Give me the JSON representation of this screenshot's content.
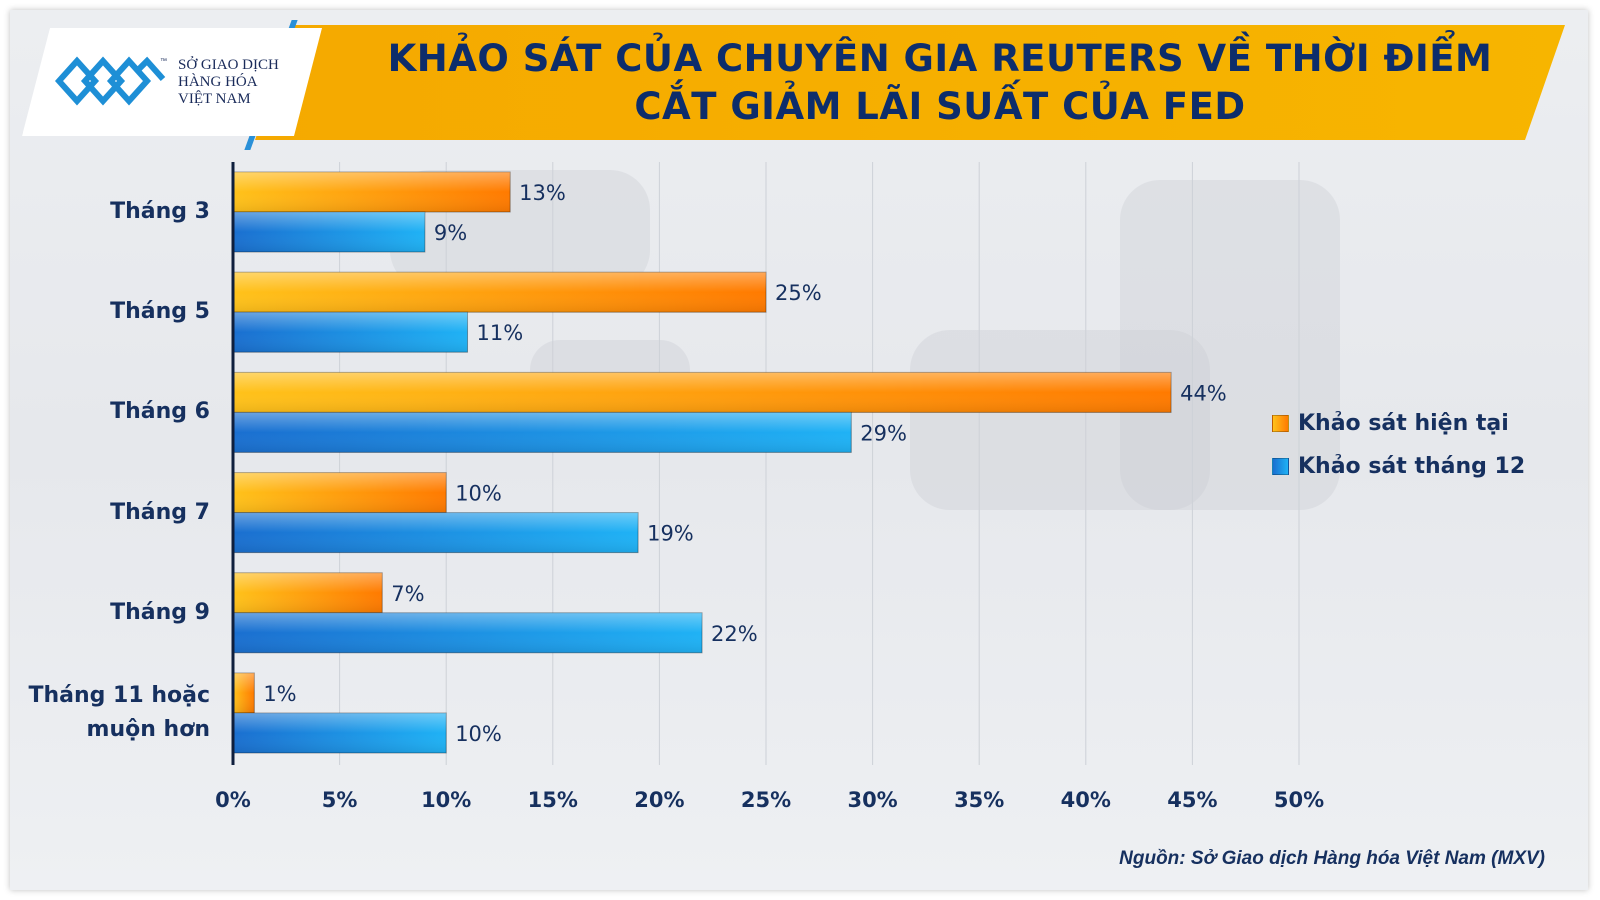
{
  "title": {
    "line1": "KHẢO SÁT CỦA CHUYÊN GIA REUTERS VỀ THỜI ĐIỂM",
    "line2": "CẮT GIẢM LÃI SUẤT CỦA FED"
  },
  "logo": {
    "line1": "SỞ GIAO DỊCH",
    "line2": "HÀNG HÓA",
    "line3": "VIỆT NAM",
    "tm": "™"
  },
  "source": "Nguồn: Sở Giao dịch Hàng hóa Việt Nam (MXV)",
  "colors": {
    "banner": "#f5a900",
    "title_text": "#0d2d6b",
    "orange_light": "#ffc21a",
    "orange_dark": "#ff7a00",
    "blue_dark": "#1a6fd0",
    "blue_light": "#1fb2f5",
    "label_text": "#16305f"
  },
  "chart_data": {
    "type": "bar",
    "orientation": "horizontal",
    "categories": [
      [
        "Tháng 3"
      ],
      [
        "Tháng 5"
      ],
      [
        "Tháng 6"
      ],
      [
        "Tháng 7"
      ],
      [
        "Tháng 9"
      ],
      [
        "Tháng 11 hoặc",
        "muộn hơn"
      ]
    ],
    "series": [
      {
        "name": "Khảo sát hiện tại",
        "values": [
          13,
          25,
          44,
          10,
          7,
          1
        ],
        "color": "orange"
      },
      {
        "name": "Khảo sát tháng 12",
        "values": [
          9,
          11,
          29,
          19,
          22,
          10
        ],
        "color": "blue"
      }
    ],
    "value_suffix": "%",
    "xlim": [
      0,
      50
    ],
    "xticks": [
      "0%",
      "5%",
      "10%",
      "15%",
      "20%",
      "25%",
      "30%",
      "35%",
      "40%",
      "45%",
      "50%"
    ],
    "grid": "vertical",
    "legend_position": "right"
  }
}
